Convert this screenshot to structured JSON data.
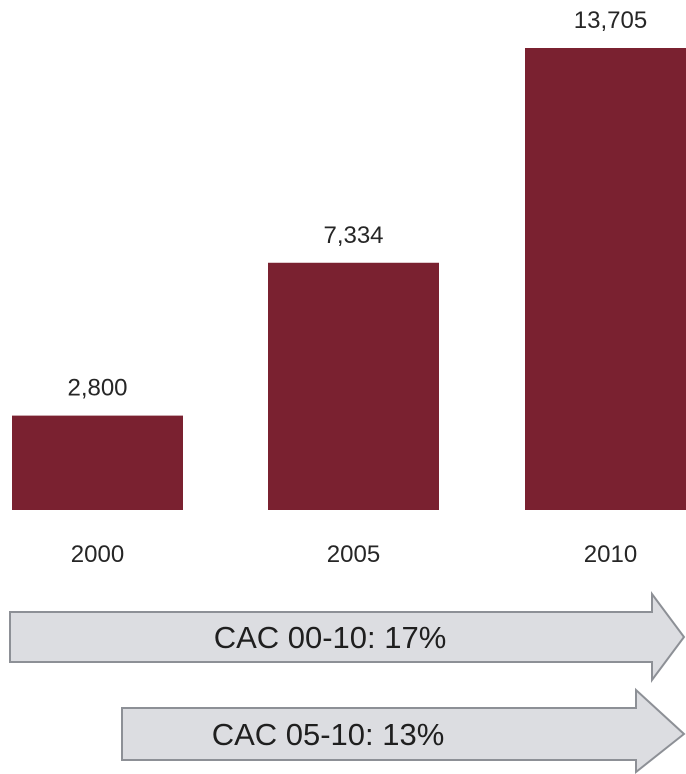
{
  "chart_data": {
    "type": "bar",
    "categories": [
      "2000",
      "2005",
      "2010"
    ],
    "values": [
      2800,
      7334,
      13705
    ],
    "value_labels": [
      "2,800",
      "7,334",
      "13,705"
    ],
    "title": "",
    "xlabel": "",
    "ylabel": "",
    "ylim": [
      0,
      13705
    ],
    "grid": false,
    "bar_color": "#7a2130",
    "annotations": [
      {
        "text": "CAC 00-10: 17%"
      },
      {
        "text": "CAC 05-10: 13%"
      }
    ]
  },
  "colors": {
    "arrow_fill": "#dcdde1",
    "arrow_edge": "#8d9096"
  }
}
